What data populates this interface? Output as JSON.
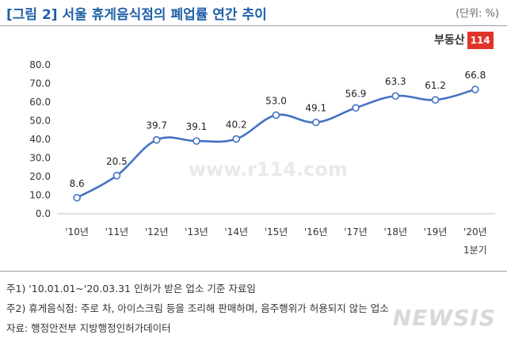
{
  "header": {
    "title": "[그림 2] 서울 휴게음식점의 폐업률 연간 추이",
    "unit": "(단위: %)",
    "logo_text": "부동산",
    "logo_num": "114"
  },
  "watermark": {
    "site": "www.r114.com",
    "agency": "NEWSIS"
  },
  "chart_data": {
    "type": "line",
    "categories": [
      "'10년",
      "'11년",
      "'12년",
      "'13년",
      "'14년",
      "'15년",
      "'16년",
      "'17년",
      "'18년",
      "'19년",
      "'20년"
    ],
    "category_sublabels": [
      "",
      "",
      "",
      "",
      "",
      "",
      "",
      "",
      "",
      "",
      "1분기"
    ],
    "series": [
      {
        "values": [
          8.6,
          20.5,
          39.7,
          39.1,
          40.2,
          53.0,
          49.1,
          56.9,
          63.3,
          61.2,
          66.8
        ],
        "color": "#4472c4"
      }
    ],
    "data_labels": [
      "8.6",
      "20.5",
      "39.7",
      "39.1",
      "40.2",
      "53.0",
      "49.1",
      "56.9",
      "63.3",
      "61.2",
      "66.8"
    ],
    "yticks": [
      "0.0",
      "10.0",
      "20.0",
      "30.0",
      "40.0",
      "50.0",
      "60.0",
      "70.0",
      "80.0"
    ],
    "ylim": [
      0,
      80
    ],
    "grid": false,
    "title": "[그림 2] 서울 휴게음식점의 폐업률 연간 추이",
    "xlabel": "",
    "ylabel": ""
  },
  "notes": [
    "주1) '10.01.01~'20.03.31 인허가 받은 업소 기준 자료임",
    "주2) 휴게음식점: 주로 차, 아이스크림 등을 조리해 판매하며, 음주행위가 허용되지 않는 업소",
    "자료: 행정안전부 지방행정인허가데이터"
  ]
}
